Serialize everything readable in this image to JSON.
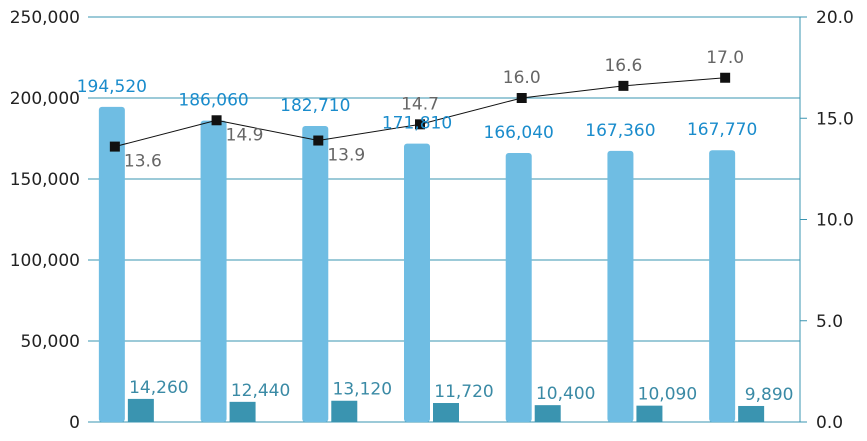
{
  "chart_data": {
    "type": "bar",
    "categories": [
      "",
      "",
      "",
      "",
      "",
      "",
      ""
    ],
    "grid": true,
    "ylim": [
      0,
      250000
    ],
    "y2lim": [
      0,
      20
    ],
    "yticks": [
      "0",
      "50,000",
      "100,000",
      "150,000",
      "200,000",
      "250,000"
    ],
    "y2ticks": [
      "0.0",
      "5.0",
      "10.0",
      "15.0",
      "20.0"
    ],
    "series": [
      {
        "axis": "left",
        "kind": "bar",
        "color": "#6fbde3",
        "values": [
          194520,
          186060,
          182710,
          171810,
          166040,
          167360,
          167770
        ],
        "labels": [
          "194,520",
          "186,060",
          "182,710",
          "171,810",
          "166,040",
          "167,360",
          "167,770"
        ]
      },
      {
        "axis": "left",
        "kind": "bar",
        "color": "#3a94b0",
        "values": [
          14260,
          12440,
          13120,
          11720,
          10400,
          10090,
          9890
        ],
        "labels": [
          "14,260",
          "12,440",
          "13,120",
          "11,720",
          "10,400",
          "10,090",
          "9,890"
        ]
      },
      {
        "axis": "right",
        "kind": "line",
        "color": "#111111",
        "marker": "square",
        "values": [
          13.6,
          14.9,
          13.9,
          14.7,
          16.0,
          16.6,
          17.0
        ],
        "labels": [
          "13.6",
          "14.9",
          "13.9",
          "14.7",
          "16.0",
          "16.6",
          "17.0"
        ]
      }
    ],
    "colors": {
      "grid": "#3a94b0",
      "label_primary": "#1a8ccc",
      "label_secondary": "#3a8aa5",
      "label_line": "#666666"
    }
  }
}
